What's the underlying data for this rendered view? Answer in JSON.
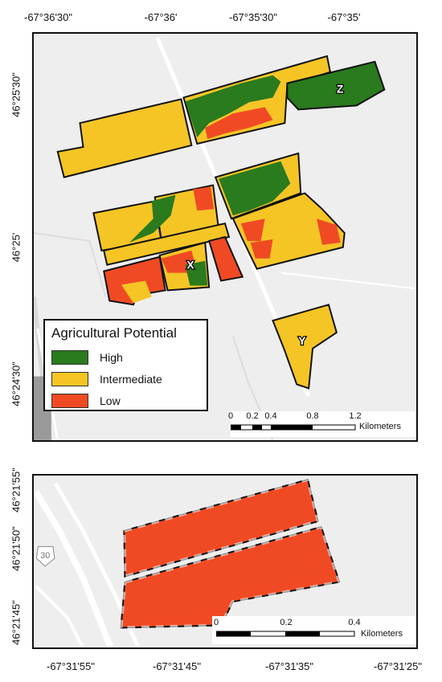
{
  "top_map": {
    "longitude_ticks": [
      "-67°36'30\"",
      "-67°36'",
      "-67°35'30\"",
      "-67°35'"
    ],
    "latitude_ticks": [
      "46°25'30\"",
      "46°25'",
      "46°24'30\""
    ],
    "field_labels": [
      "Z",
      "X",
      "Y"
    ],
    "legend": {
      "title": "Agricultural Potential",
      "items": [
        {
          "label": "High",
          "color": "#2a7a1e"
        },
        {
          "label": "Intermediate",
          "color": "#f5c526"
        },
        {
          "label": "Low",
          "color": "#f04a24"
        }
      ]
    },
    "scalebar": {
      "labels": [
        "0",
        "0.2",
        "0.4",
        "0.8",
        "1.2"
      ],
      "unit": "Kilometers"
    }
  },
  "bottom_map": {
    "longitude_ticks": [
      "-67°31'55\"",
      "-67°31'45\"",
      "-67°31'35\"",
      "-67°31'25\""
    ],
    "latitude_ticks": [
      "46°21'55\"",
      "46°21'50\"",
      "46°21'45\""
    ],
    "road_shield": "30",
    "scalebar": {
      "labels": [
        "0",
        "0.2",
        "0.4"
      ],
      "unit": "Kilometers"
    }
  }
}
